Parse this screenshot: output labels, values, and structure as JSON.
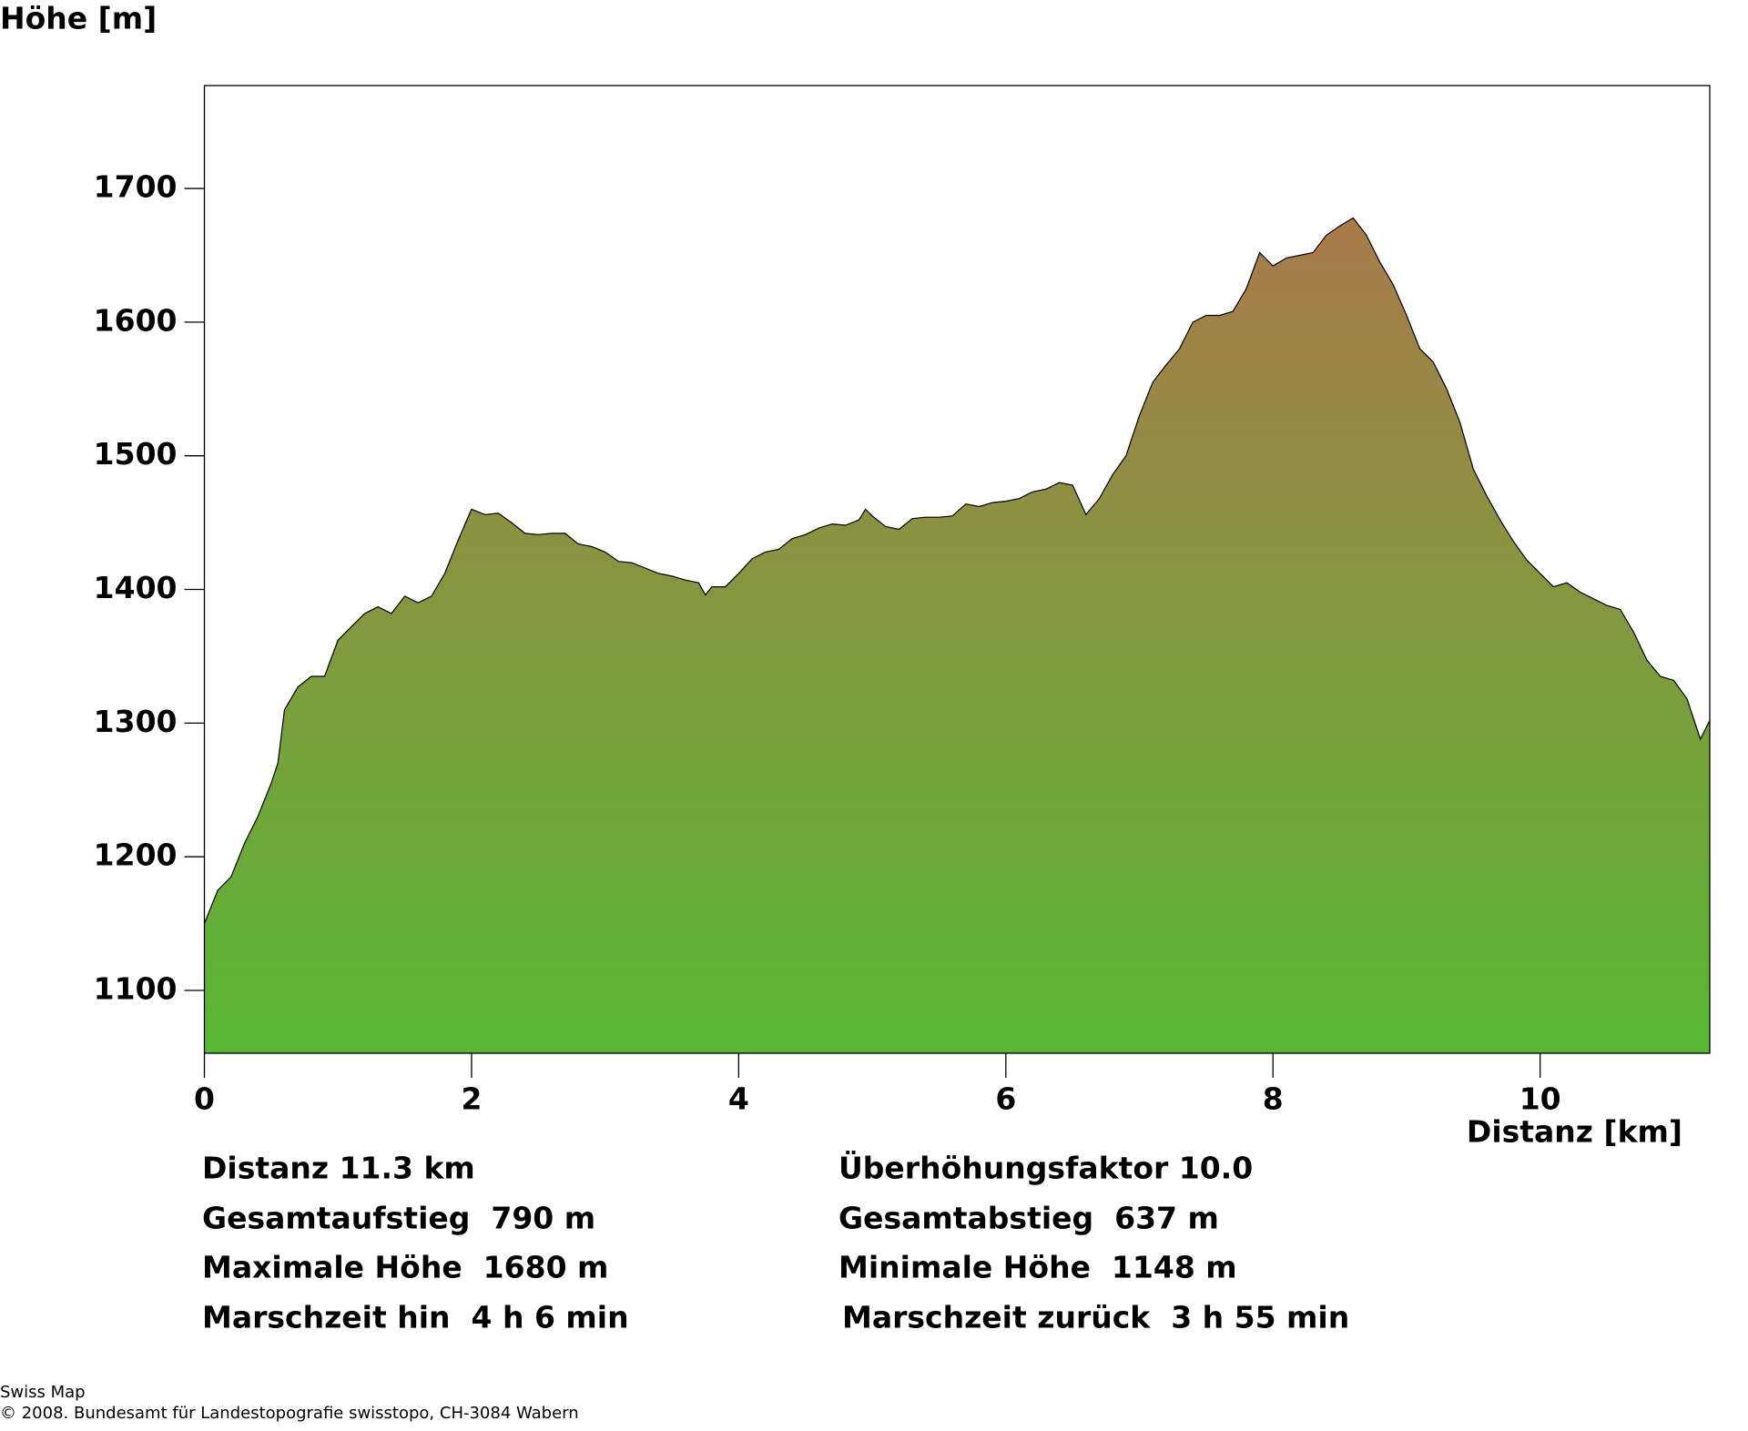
{
  "chart_data": {
    "type": "area",
    "y_label": "Höhe [m]",
    "x_label": "Distanz [km]",
    "x": [
      0,
      0.1,
      0.2,
      0.3,
      0.4,
      0.5,
      0.55,
      0.6,
      0.7,
      0.8,
      0.9,
      1.0,
      1.1,
      1.2,
      1.3,
      1.4,
      1.5,
      1.6,
      1.7,
      1.8,
      1.9,
      2.0,
      2.1,
      2.2,
      2.3,
      2.4,
      2.5,
      2.6,
      2.7,
      2.8,
      2.9,
      3.0,
      3.1,
      3.2,
      3.3,
      3.4,
      3.5,
      3.6,
      3.7,
      3.75,
      3.8,
      3.9,
      4.0,
      4.1,
      4.2,
      4.3,
      4.4,
      4.5,
      4.6,
      4.7,
      4.8,
      4.9,
      4.95,
      5.0,
      5.1,
      5.2,
      5.3,
      5.4,
      5.5,
      5.6,
      5.7,
      5.8,
      5.9,
      6.0,
      6.1,
      6.2,
      6.3,
      6.4,
      6.5,
      6.6,
      6.7,
      6.8,
      6.9,
      7.0,
      7.1,
      7.2,
      7.3,
      7.4,
      7.5,
      7.6,
      7.7,
      7.8,
      7.9,
      8.0,
      8.1,
      8.2,
      8.3,
      8.4,
      8.5,
      8.6,
      8.7,
      8.8,
      8.9,
      9.0,
      9.1,
      9.2,
      9.3,
      9.4,
      9.5,
      9.6,
      9.7,
      9.8,
      9.9,
      10.0,
      10.1,
      10.2,
      10.3,
      10.4,
      10.5,
      10.6,
      10.7,
      10.8,
      10.9,
      11.0,
      11.1,
      11.2,
      11.27
    ],
    "values": [
      1150,
      1175,
      1185,
      1210,
      1230,
      1255,
      1270,
      1310,
      1327,
      1335,
      1335,
      1362,
      1372,
      1382,
      1387,
      1382,
      1395,
      1390,
      1395,
      1412,
      1437,
      1460,
      1456,
      1457,
      1450,
      1442,
      1441,
      1442,
      1442,
      1434,
      1432,
      1428,
      1421,
      1420,
      1416,
      1412,
      1410,
      1407,
      1405,
      1396,
      1402,
      1402,
      1412,
      1423,
      1428,
      1430,
      1438,
      1441,
      1446,
      1449,
      1448,
      1452,
      1460,
      1455,
      1447,
      1445,
      1453,
      1454,
      1454,
      1455,
      1464,
      1462,
      1465,
      1466,
      1468,
      1473,
      1475,
      1480,
      1478,
      1456,
      1468,
      1486,
      1500,
      1530,
      1555,
      1568,
      1580,
      1600,
      1605,
      1605,
      1608,
      1625,
      1652,
      1642,
      1648,
      1650,
      1652,
      1665,
      1672,
      1678,
      1665,
      1645,
      1628,
      1605,
      1580,
      1570,
      1550,
      1525,
      1490,
      1470,
      1452,
      1436,
      1422,
      1412,
      1402,
      1405,
      1398,
      1393,
      1388,
      1385,
      1368,
      1347,
      1335,
      1332,
      1318,
      1288,
      1302
    ],
    "gradient": [
      "#58b834",
      "#aa7a4a"
    ],
    "xlim": [
      0,
      11.27
    ],
    "ylim": [
      1053,
      1777
    ],
    "xticks": [
      0,
      2,
      4,
      6,
      8,
      10
    ],
    "yticks": [
      1100,
      1200,
      1300,
      1400,
      1500,
      1600,
      1700
    ]
  },
  "stats": {
    "left": [
      "Distanz 11.3 km",
      "Gesamtaufstieg  790 m",
      "Maximale Höhe  1680 m",
      "Marschzeit hin  4 h 6 min"
    ],
    "right": [
      "Überhöhungsfaktor 10.0",
      "Gesamtabstieg  637 m",
      "Minimale Höhe  1148 m",
      "Marschzeit zurück  3 h 55 min"
    ]
  },
  "footer": [
    "Swiss Map",
    "© 2008. Bundesamt für Landestopografie swisstopo, CH-3084 Wabern"
  ]
}
